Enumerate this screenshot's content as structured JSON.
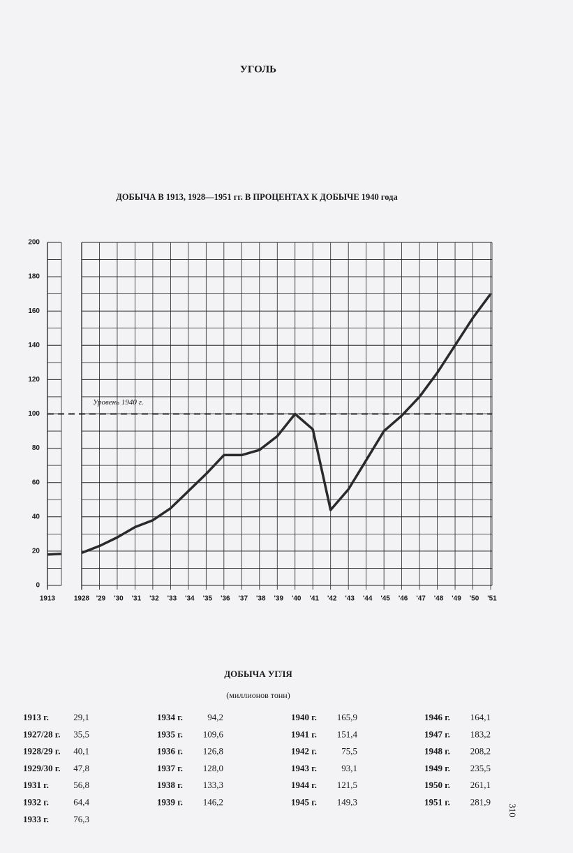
{
  "header": {
    "title": "УГОЛЬ"
  },
  "chart_data": {
    "type": "line",
    "title": "ДОБЫЧА В 1913, 1928—1951 гг. В ПРОЦЕНТАХ К ДОБЫЧЕ 1940 года",
    "categories": [
      "1913",
      "1928",
      "'29",
      "'30",
      "'31",
      "'32",
      "'33",
      "'34",
      "'35",
      "'36",
      "'37",
      "'38",
      "'39",
      "'40",
      "'41",
      "'42",
      "'43",
      "'44",
      "'45",
      "'46",
      "'47",
      "'48",
      "'49",
      "'50",
      "'51"
    ],
    "values": [
      18,
      19,
      23,
      28,
      34,
      38,
      45,
      55,
      65,
      76,
      76,
      79,
      87,
      100,
      91,
      44,
      56,
      73,
      90,
      99,
      110,
      124,
      140,
      156,
      170
    ],
    "color": "#2a2a2a",
    "ylim": [
      0,
      200
    ],
    "yticks": [
      0,
      20,
      40,
      60,
      80,
      100,
      120,
      140,
      160,
      180,
      200
    ],
    "yticks_minor": [
      10,
      30,
      50,
      70,
      90,
      110,
      130,
      150,
      170,
      190
    ],
    "grid": true,
    "reference": {
      "value": 100,
      "label": "Уровень 1940 г."
    }
  },
  "table": {
    "title": "ДОБЫЧА УГЛЯ",
    "subtitle": "(миллионов тонн)",
    "columns": [
      [
        [
          "1913 г.",
          "29,1"
        ],
        [
          "1927/28 г.",
          "35,5"
        ],
        [
          "1928/29 г.",
          "40,1"
        ],
        [
          "1929/30 г.",
          "47,8"
        ],
        [
          "1931 г.",
          "56,8"
        ],
        [
          "1932 г.",
          "64,4"
        ],
        [
          "1933 г.",
          "76,3"
        ]
      ],
      [
        [
          "1934 г.",
          "94,2"
        ],
        [
          "1935 г.",
          "109,6"
        ],
        [
          "1936 г.",
          "126,8"
        ],
        [
          "1937 г.",
          "128,0"
        ],
        [
          "1938 г.",
          "133,3"
        ],
        [
          "1939 г.",
          "146,2"
        ]
      ],
      [
        [
          "1940 г.",
          "165,9"
        ],
        [
          "1941 г.",
          "151,4"
        ],
        [
          "1942 г.",
          "75,5"
        ],
        [
          "1943 г.",
          "93,1"
        ],
        [
          "1944 г.",
          "121,5"
        ],
        [
          "1945 г.",
          "149,3"
        ]
      ],
      [
        [
          "1946 г.",
          "164,1"
        ],
        [
          "1947 г.",
          "183,2"
        ],
        [
          "1948 г.",
          "208,2"
        ],
        [
          "1949 г.",
          "235,5"
        ],
        [
          "1950 г.",
          "261,1"
        ],
        [
          "1951 г.",
          "281,9"
        ]
      ]
    ]
  },
  "page_number": "310"
}
